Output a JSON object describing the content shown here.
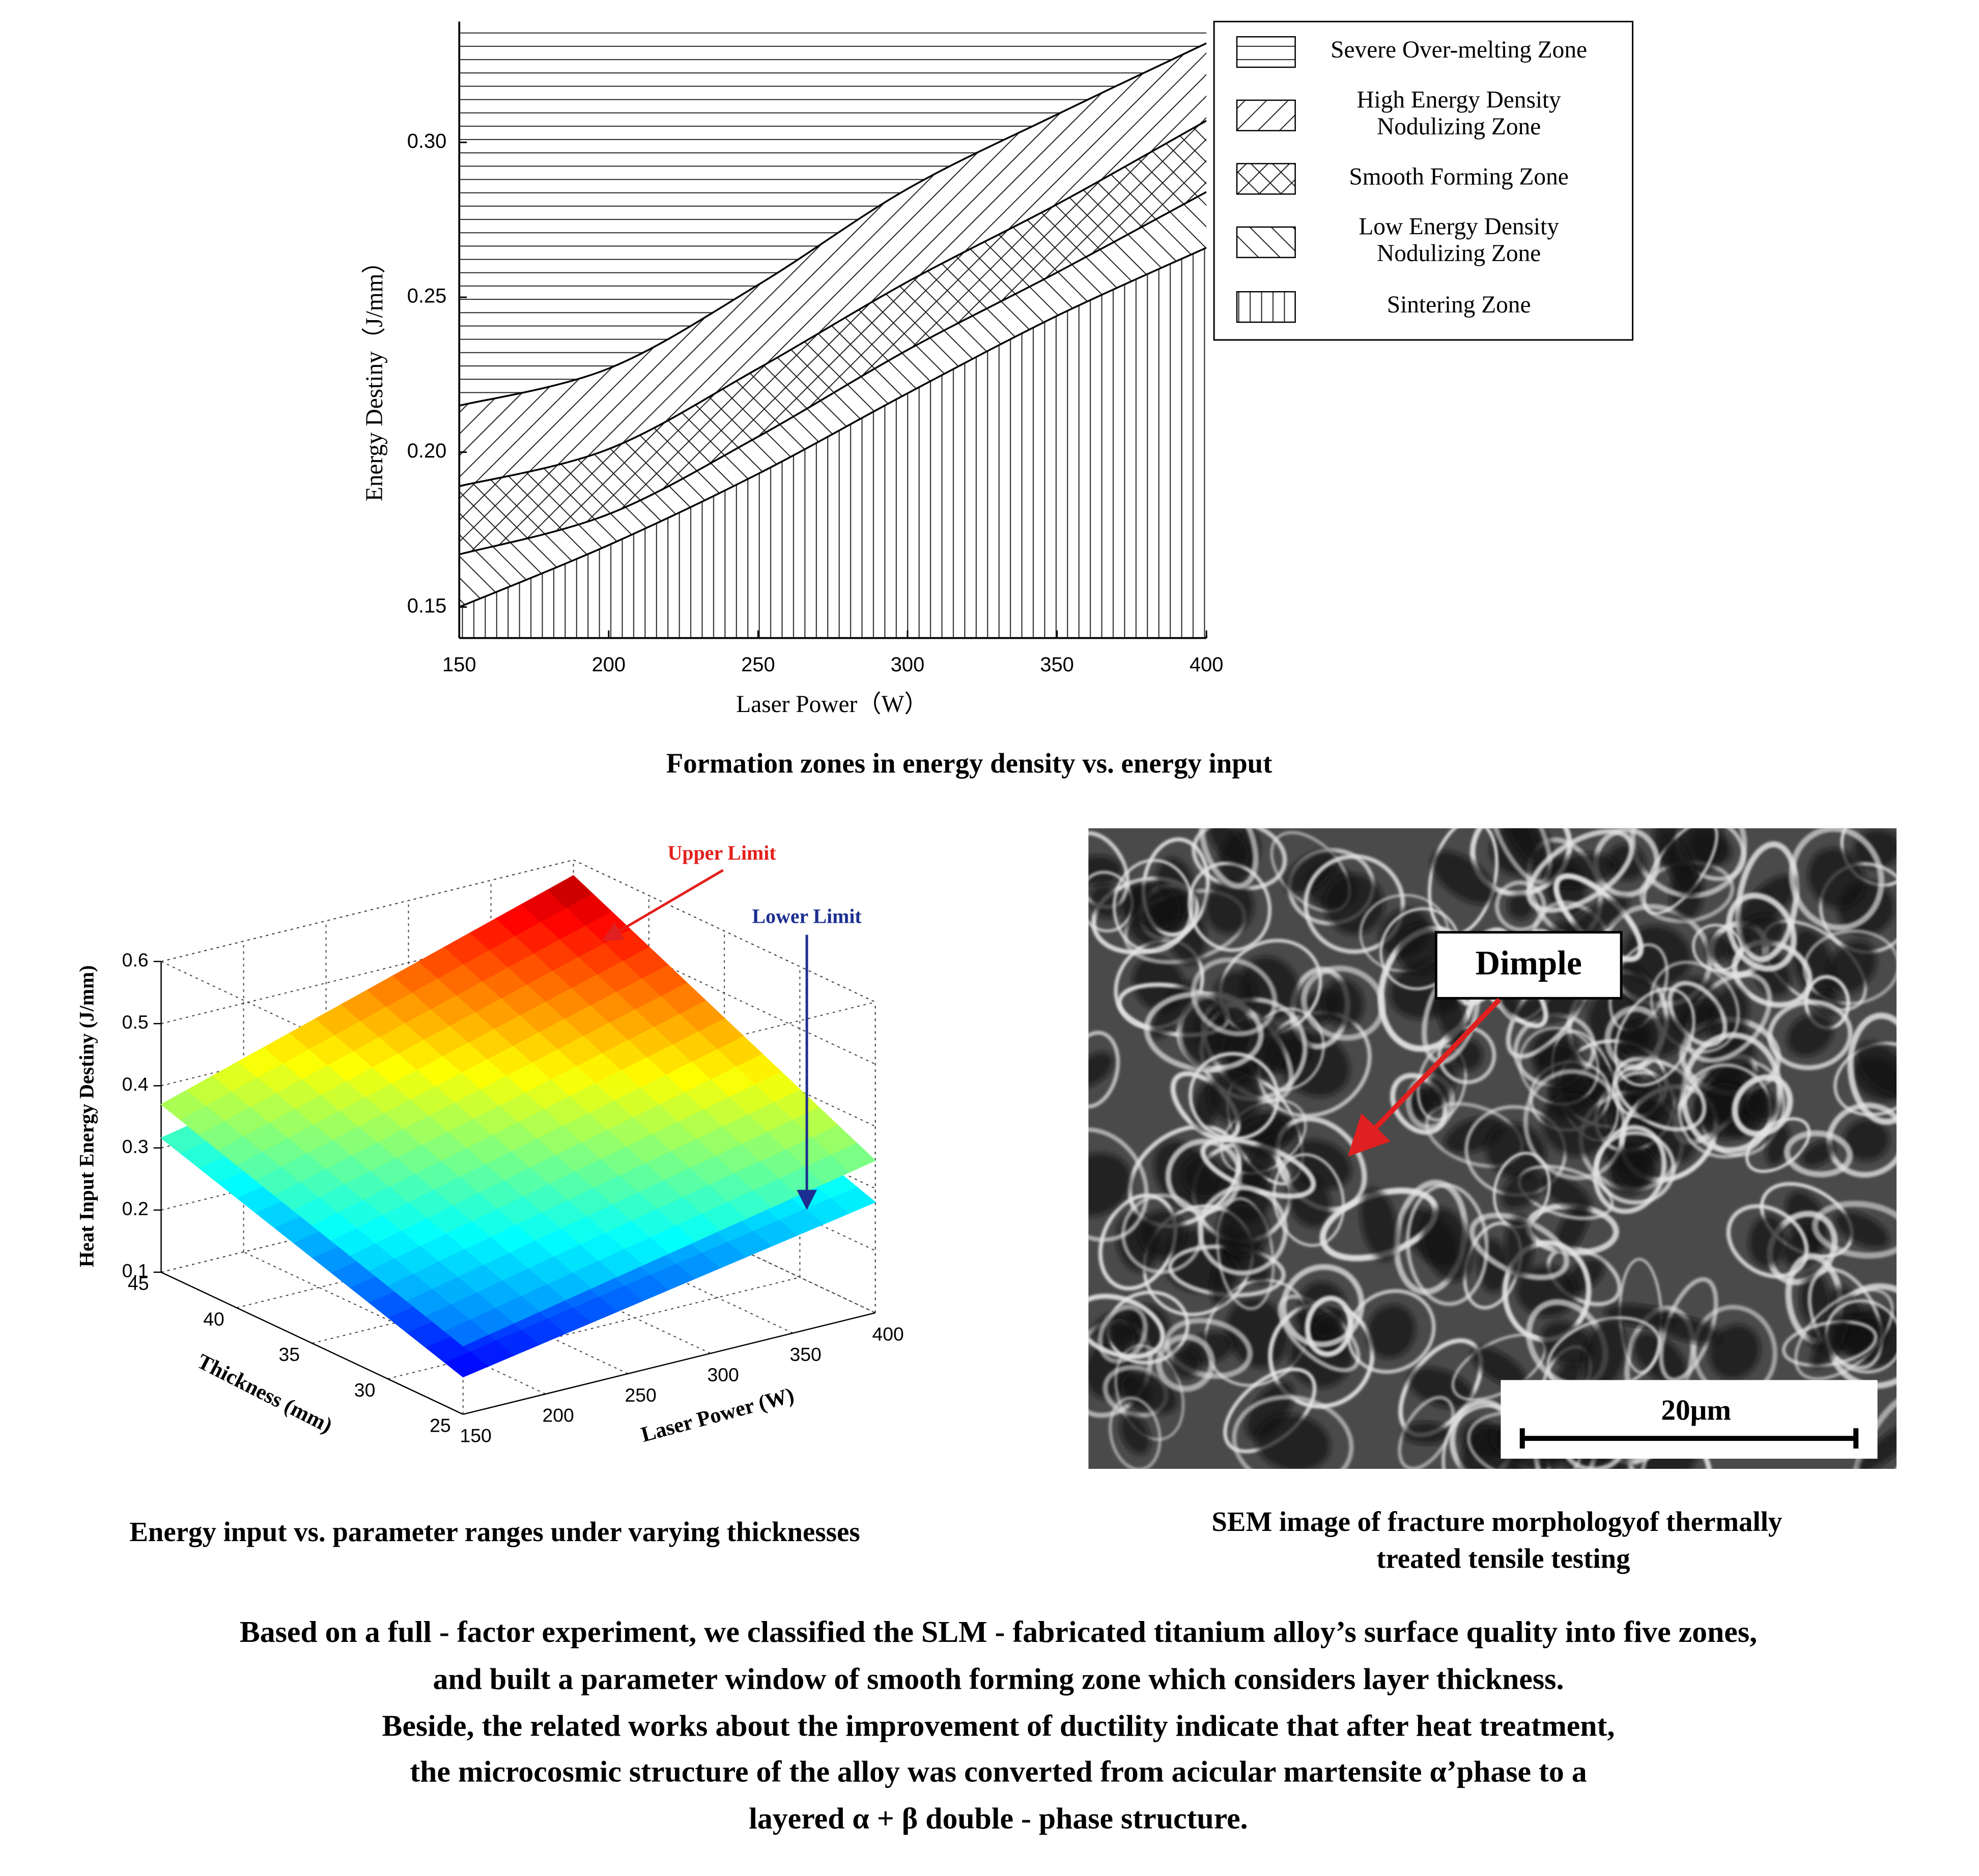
{
  "chart_data": [
    {
      "type": "zones",
      "y_label": "Energy Destiny（J/mm）",
      "x_label": "Laser Power（W）",
      "x": [
        150,
        200,
        250,
        300,
        350,
        400
      ],
      "boundaries": [
        [
          0.215,
          0.227,
          0.254,
          0.285,
          0.309,
          0.332
        ],
        [
          0.189,
          0.201,
          0.227,
          0.255,
          0.28,
          0.307
        ],
        [
          0.167,
          0.18,
          0.205,
          0.233,
          0.258,
          0.284
        ],
        [
          0.15,
          0.17,
          0.193,
          0.219,
          0.244,
          0.266
        ]
      ],
      "zones": [
        {
          "name": [
            "Severe Over-melting Zone"
          ],
          "pattern": "horizontal"
        },
        {
          "name": [
            "High Energy Density",
            "Nodulizing Zone"
          ],
          "pattern": "forward"
        },
        {
          "name": [
            "Smooth Forming Zone"
          ],
          "pattern": "cross"
        },
        {
          "name": [
            "Low Energy Density",
            "Nodulizing Zone"
          ],
          "pattern": "backward"
        },
        {
          "name": [
            "Sintering Zone"
          ],
          "pattern": "vertical"
        }
      ],
      "xlim": [
        150,
        400
      ],
      "ylim": [
        0.14,
        0.339
      ],
      "xticks": [
        150,
        200,
        250,
        300,
        350,
        400
      ],
      "yticks": [
        0.15,
        {
          "value": 0.2,
          "label": "0.20"
        },
        0.25,
        {
          "value": 0.3,
          "label": "0.30"
        }
      ],
      "caption": "Formation zones in energy density vs. energy input"
    },
    {
      "type": "surface",
      "x_label": "Laser Power  (W)",
      "y_label": "Thickness  (mm)",
      "z_label": "Heat Input Energy Destiny  (J/mm)",
      "xlim": [
        150,
        400
      ],
      "ylim": [
        25,
        45
      ],
      "zlim": [
        0.1,
        0.6
      ],
      "xticks": [
        150,
        200,
        250,
        300,
        350,
        400
      ],
      "yticks": [
        25,
        30,
        35,
        40,
        45
      ],
      "zticks": [
        0.1,
        0.2,
        0.3,
        0.4,
        0.5,
        0.6
      ],
      "colormap": "jet",
      "surfaces": [
        {
          "name": "Lower Limit",
          "color": "#1c2f90",
          "values": [
            [
              0.16,
              0.278
            ],
            [
              0.316,
              0.45
            ]
          ]
        },
        {
          "name": "Upper Limit",
          "color": "#e3201c",
          "values": [
            [
              0.21,
              0.345
            ],
            [
              0.37,
              0.575
            ]
          ]
        }
      ],
      "caption": "Energy input vs. parameter ranges under varying thicknesses"
    }
  ],
  "sem_image": {
    "label": "Dimple",
    "scale_bar": "20μm",
    "caption": [
      "SEM image of fracture morphologyof thermally",
      "treated tensile testing"
    ]
  },
  "summary": [
    "Based on a full - factor experiment, we classified the SLM - fabricated titanium alloy’s surface quality into five zones,",
    "and built a parameter window of smooth forming zone which considers layer thickness.",
    "Beside, the related works  about the improvement of ductility indicate that after heat treatment,",
    "the microcosmic structure of the alloy was converted from acicular martensite α’phase to a",
    "layered α +  β double - phase structure."
  ]
}
